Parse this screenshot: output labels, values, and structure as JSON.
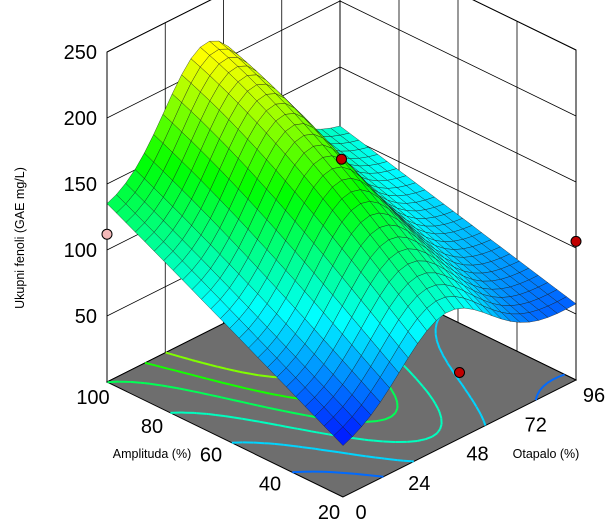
{
  "chart_data": {
    "type": "surface3d",
    "zlabel": "Ukupni fenoli  (GAE mg/L)",
    "xlabel": "Amplituda (%)",
    "ylabel": "Otapalo (%)",
    "x_ticks": [
      20,
      40,
      60,
      80,
      100
    ],
    "y_ticks": [
      0,
      24,
      48,
      72,
      96
    ],
    "z_ticks": [
      50,
      100,
      150,
      200,
      250
    ],
    "xlim": [
      20,
      100
    ],
    "ylim": [
      0,
      96
    ],
    "zlim": [
      0,
      250
    ],
    "surface_corners": [
      {
        "x": 20,
        "y": 0,
        "z": 35
      },
      {
        "x": 100,
        "y": 0,
        "z": 128
      },
      {
        "x": 20,
        "y": 96,
        "z": 57
      },
      {
        "x": 100,
        "y": 96,
        "z": 104
      }
    ],
    "surface_peak": {
      "x": 95,
      "y": 42,
      "z": 215
    },
    "design_points": [
      {
        "x": 20,
        "y": 48,
        "z": 50,
        "color": "#c00000"
      },
      {
        "x": 100,
        "y": 0,
        "z": 112,
        "color": "#f4b8b8"
      },
      {
        "x": 20,
        "y": 96,
        "z": 105,
        "color": "#c00000"
      },
      {
        "x": 60,
        "y": 48,
        "z": 168,
        "color": "#c00000"
      }
    ],
    "grid": true,
    "colormap": [
      "#0000ff",
      "#00ffff",
      "#00ff00",
      "#ffff00"
    ]
  }
}
